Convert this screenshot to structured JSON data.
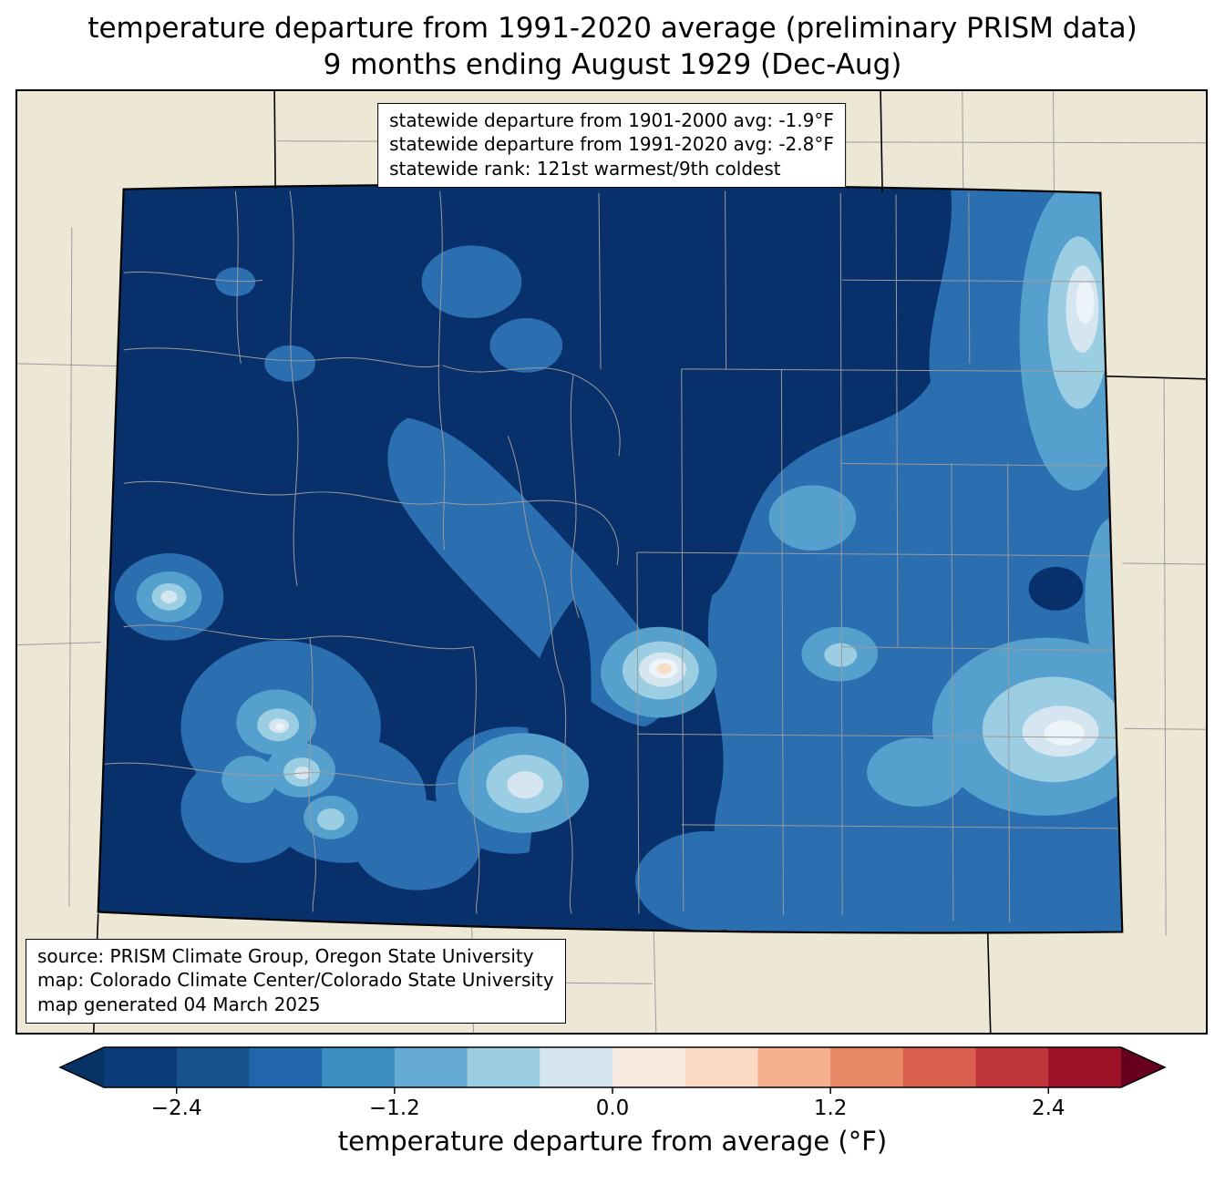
{
  "title": {
    "line1": "temperature departure from 1991-2020 average (preliminary PRISM data)",
    "line2": "9 months ending August 1929 (Dec-Aug)"
  },
  "stats_box": {
    "line1": "statewide departure from 1901-2000 avg: -1.9°F",
    "line2": "statewide departure from 1991-2020 avg: -2.8°F",
    "line3": "statewide rank: 121st warmest/9th coldest"
  },
  "source_box": {
    "line1": "source: PRISM Climate Group, Oregon State University",
    "line2": "map: Colorado Climate Center/Colorado State University",
    "line3": "map generated 04 March 2025"
  },
  "colorbar": {
    "label": "temperature departure from average (°F)",
    "range": [
      -2.8,
      2.8
    ],
    "tick_labels": [
      "−2.4",
      "−1.2",
      "0.0",
      "1.2",
      "2.4"
    ],
    "tick_values": [
      -2.4,
      -1.2,
      0.0,
      1.2,
      2.4
    ],
    "segment_colors": [
      "#0a3b78",
      "#16538f",
      "#2166ac",
      "#3d8ec0",
      "#66abd4",
      "#9ccee3",
      "#d5e6f1",
      "#f8ece2",
      "#fbd9c3",
      "#f5b08f",
      "#e98867",
      "#d95f4e",
      "#c03539",
      "#9c1127"
    ],
    "under_arrow_color": "#063264",
    "over_arrow_color": "#67001f"
  },
  "map": {
    "palette": {
      "m1": "#08306b",
      "m2": "#2b6fb1",
      "m3": "#55a0cd",
      "m4": "#9ccee3",
      "m5": "#d5e6f1",
      "m6": "#ecf4fa",
      "peach": "#f8ddc6",
      "land": "#ece8d5",
      "cline": "#9b9b9b"
    }
  }
}
